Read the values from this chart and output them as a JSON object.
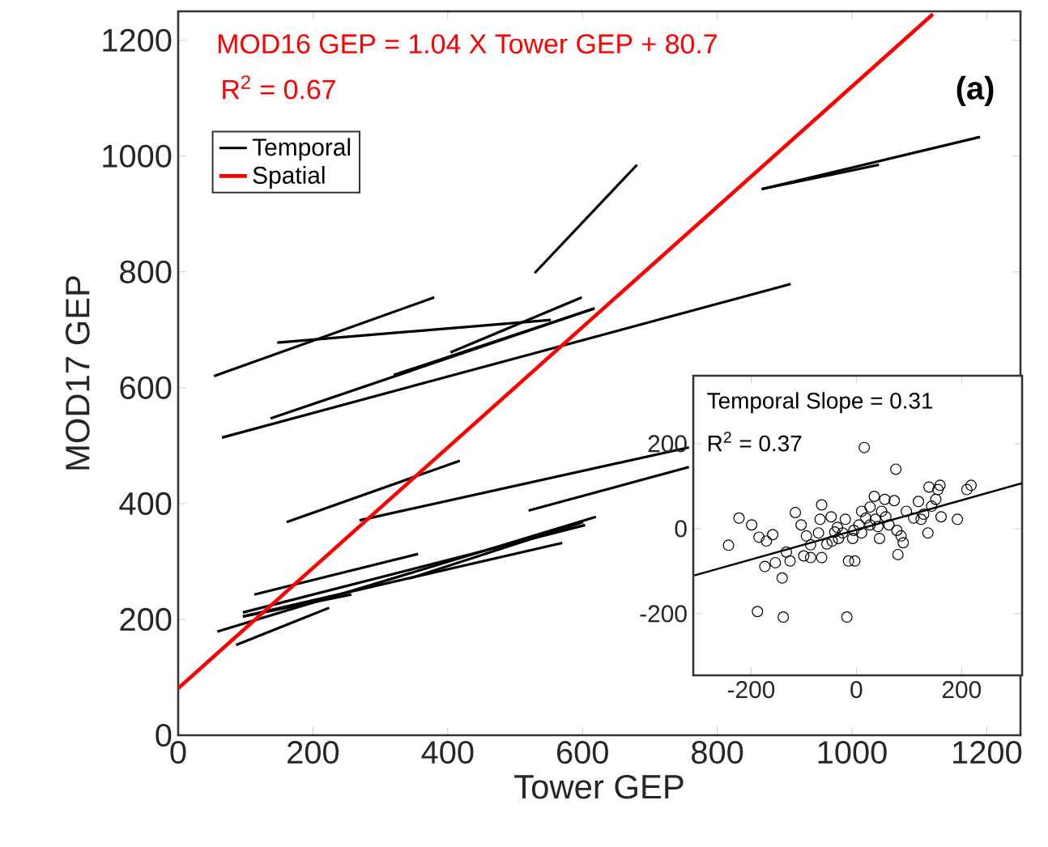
{
  "chart_data": [
    {
      "type": "line",
      "xlabel": "Tower GEP",
      "ylabel": "MOD17 GEP",
      "xlim": [
        0,
        1250
      ],
      "ylim": [
        0,
        1250
      ],
      "xticks": [
        0,
        200,
        400,
        600,
        800,
        1000,
        1200
      ],
      "yticks": [
        0,
        200,
        400,
        600,
        800,
        1000,
        1200
      ],
      "legend": "top left",
      "marker": "none",
      "line_style": "solid",
      "annotations": [
        "MOD16 GEP = 1.04 X Tower GEP + 80.7",
        "R$^{2}$ = 0.67",
        "(a)"
      ],
      "series": [
        {
          "name": "Temporal",
          "color": "#000000",
          "x": [
            53,
            380
          ],
          "values": [
            620,
            756
          ]
        },
        {
          "color": "#000000",
          "x": [
            147,
            553
          ],
          "values": [
            678,
            717
          ]
        },
        {
          "color": "#000000",
          "x": [
            529,
            681
          ],
          "values": [
            798,
            985
          ]
        },
        {
          "color": "#000000",
          "x": [
            404,
            599
          ],
          "values": [
            661,
            756
          ]
        },
        {
          "color": "#000000",
          "x": [
            320,
            618
          ],
          "values": [
            622,
            737
          ]
        },
        {
          "color": "#000000",
          "x": [
            65,
            909
          ],
          "values": [
            514,
            779
          ]
        },
        {
          "color": "#000000",
          "x": [
            137,
            618
          ],
          "values": [
            547,
            737
          ]
        },
        {
          "color": "#000000",
          "x": [
            866,
            1190
          ],
          "values": [
            943,
            1033
          ]
        },
        {
          "color": "#000000",
          "x": [
            866,
            1040
          ],
          "values": [
            943,
            985
          ]
        },
        {
          "color": "#000000",
          "x": [
            161,
            418
          ],
          "values": [
            368,
            474
          ]
        },
        {
          "color": "#000000",
          "x": [
            269,
            758
          ],
          "values": [
            371,
            497
          ]
        },
        {
          "color": "#000000",
          "x": [
            520,
            758
          ],
          "values": [
            388,
            463
          ]
        },
        {
          "color": "#000000",
          "x": [
            58,
            620
          ],
          "values": [
            179,
            377
          ]
        },
        {
          "color": "#000000",
          "x": [
            86,
            224
          ],
          "values": [
            156,
            220
          ]
        },
        {
          "color": "#000000",
          "x": [
            96,
            604
          ],
          "values": [
            212,
            363
          ]
        },
        {
          "color": "#000000",
          "x": [
            113,
            356
          ],
          "values": [
            243,
            313
          ]
        },
        {
          "color": "#000000",
          "x": [
            96,
            570
          ],
          "values": [
            205,
            332
          ]
        },
        {
          "color": "#000000",
          "x": [
            344,
            601
          ],
          "values": [
            271,
            368
          ]
        },
        {
          "color": "#000000",
          "x": [
            96,
            257
          ],
          "values": [
            205,
            243
          ]
        },
        {
          "name": "Spatial",
          "color": "#ff0000",
          "x": [
            0,
            1120
          ],
          "values": [
            81,
            1245
          ]
        }
      ]
    },
    {
      "type": "scatter",
      "xlim": [
        -310,
        315
      ],
      "ylim": [
        -345,
        360
      ],
      "xticks": [
        -200,
        0,
        200
      ],
      "yticks": [
        -200,
        0,
        200
      ],
      "marker": "circle",
      "annotations": [
        "Temporal Slope = 0.31",
        "R$^{2}$ = 0.37"
      ],
      "series": [
        {
          "type": "scatter",
          "color": "#000000",
          "x": [
            15,
            75,
            -243,
            -223,
            -199,
            -185,
            -171,
            -159,
            -174,
            -154,
            -141,
            -188,
            -139,
            -18,
            -126,
            -116,
            -105,
            -95,
            -87,
            -66,
            -69,
            -72,
            -66,
            -56,
            -48,
            -41,
            -34,
            -26,
            -21,
            -15,
            -3,
            -7,
            5,
            10,
            18,
            26,
            34,
            36,
            44,
            48,
            54,
            62,
            72,
            77,
            79,
            85,
            89,
            95,
            109,
            118,
            128,
            136,
            138,
            143,
            151,
            159,
            161,
            192,
            210,
            218,
            155,
            26,
            -36,
            -46,
            -87,
            -133,
            -100,
            10,
            56,
            123,
            41,
            -5
          ],
          "values": [
            191,
            140,
            -39,
            25,
            9,
            -20,
            -29,
            -14,
            -89,
            -80,
            -116,
            -195,
            -208,
            -208,
            -76,
            38,
            9,
            -17,
            -68,
            56,
            22,
            -10,
            -68,
            -36,
            28,
            -8,
            -23,
            -10,
            22,
            -76,
            -76,
            -23,
            9,
            -10,
            25,
            51,
            76,
            22,
            -23,
            41,
            69,
            9,
            66,
            -4,
            -61,
            -17,
            -33,
            41,
            25,
            64,
            34,
            -10,
            98,
            53,
            69,
            102,
            28,
            22,
            92,
            102,
            92,
            9,
            3,
            -29,
            -38,
            -55,
            -64,
            41,
            28,
            22,
            5,
            -4
          ]
        },
        {
          "type": "line",
          "marker": "none",
          "color": "#000000",
          "x": [
            -308,
            315
          ],
          "values": [
            -110,
            107
          ]
        }
      ]
    }
  ]
}
